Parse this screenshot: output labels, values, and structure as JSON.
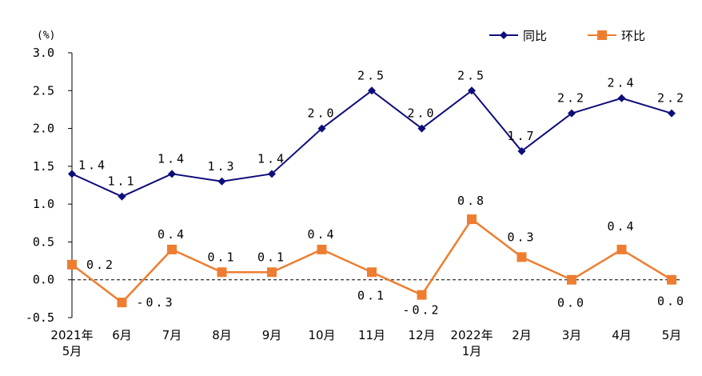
{
  "chart_data": {
    "type": "line",
    "unit_label": "(%)",
    "categories": [
      [
        "2021年",
        "5月"
      ],
      [
        "6月"
      ],
      [
        "7月"
      ],
      [
        "8月"
      ],
      [
        "9月"
      ],
      [
        "10月"
      ],
      [
        "11月"
      ],
      [
        "12月"
      ],
      [
        "2022年",
        "1月"
      ],
      [
        "2月"
      ],
      [
        "3月"
      ],
      [
        "4月"
      ],
      [
        "5月"
      ]
    ],
    "ylim": [
      -0.5,
      3.0
    ],
    "yticks": [
      "3.0",
      "2.5",
      "2.0",
      "1.5",
      "1.0",
      "0.5",
      "0.0",
      "-0.5"
    ],
    "zero_line": "dashed",
    "legend_position": "top-right",
    "series": [
      {
        "name": "同比",
        "color": "#0d0d7a",
        "marker": "diamond",
        "values": [
          1.4,
          1.1,
          1.4,
          1.3,
          1.4,
          2.0,
          2.5,
          2.0,
          2.5,
          1.7,
          2.2,
          2.4,
          2.2
        ],
        "labels": [
          "1.4",
          "1.1",
          "1.4",
          "1.3",
          "1.4",
          "2.0",
          "2.5",
          "2.0",
          "2.5",
          "1.7",
          "2.2",
          "2.4",
          "2.2"
        ]
      },
      {
        "name": "环比",
        "color": "#ee7d31",
        "marker": "square",
        "values": [
          0.2,
          -0.3,
          0.4,
          0.1,
          0.1,
          0.4,
          0.1,
          -0.2,
          0.8,
          0.3,
          0.0,
          0.4,
          0.0
        ],
        "labels": [
          "0.2",
          "-0.3",
          "0.4",
          "0.1",
          "0.1",
          "0.4",
          "0.1",
          "-0.2",
          "0.8",
          "0.3",
          "0.0",
          "0.4",
          "0.0"
        ]
      }
    ]
  }
}
